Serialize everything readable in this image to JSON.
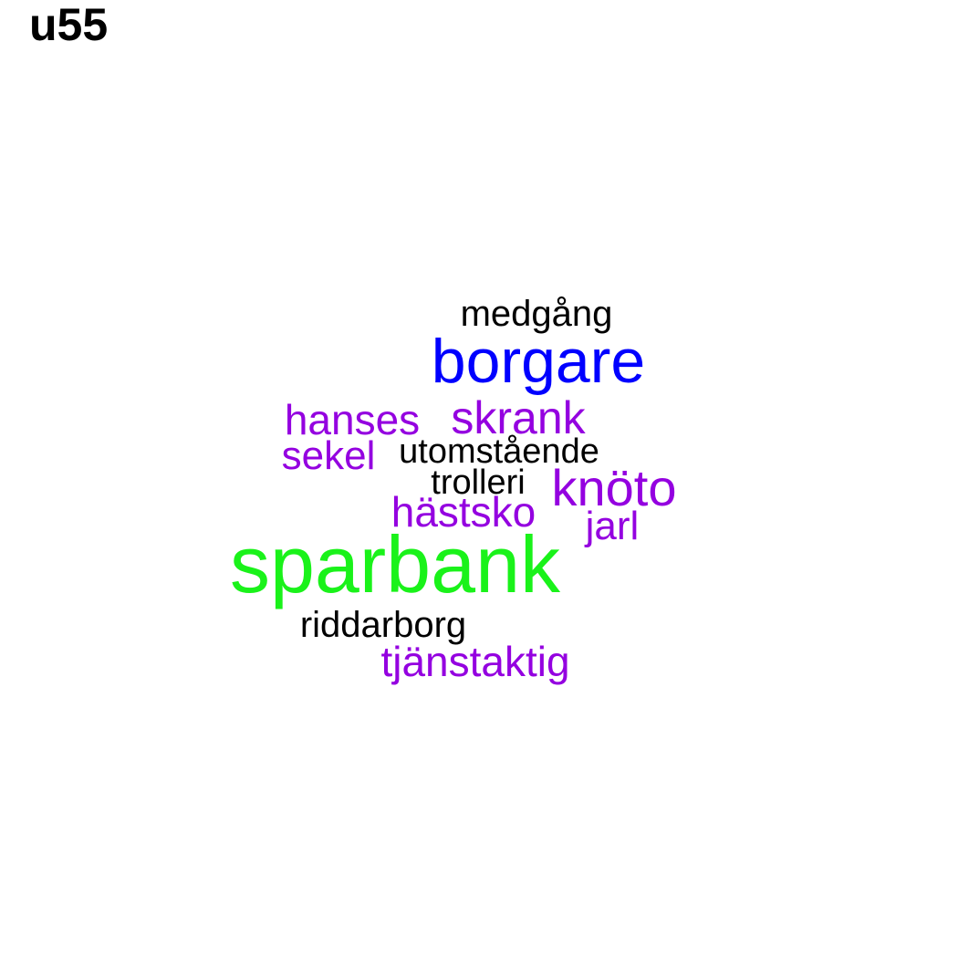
{
  "label": "u55",
  "colors": {
    "black": "#000000",
    "blue": "#0000ff",
    "purple": "#9400e0",
    "green": "#1af21a"
  },
  "words": {
    "medgang": "medgång",
    "borgare": "borgare",
    "hanses": "hanses",
    "skrank": "skrank",
    "sekel": "sekel",
    "utomstaende": "utomstående",
    "trolleri": "trolleri",
    "knoto": "knöto",
    "hastsko": "hästsko",
    "jarl": "jarl",
    "sparbank": "sparbank",
    "riddarborg": "riddarborg",
    "tjanstaktig": "tjänstaktig"
  },
  "word_colors": {
    "medgang": "black",
    "borgare": "blue",
    "hanses": "purple",
    "skrank": "purple",
    "sekel": "purple",
    "utomstaende": "black",
    "trolleri": "black",
    "knoto": "purple",
    "hastsko": "purple",
    "jarl": "purple",
    "sparbank": "green",
    "riddarborg": "black",
    "tjanstaktig": "purple"
  }
}
